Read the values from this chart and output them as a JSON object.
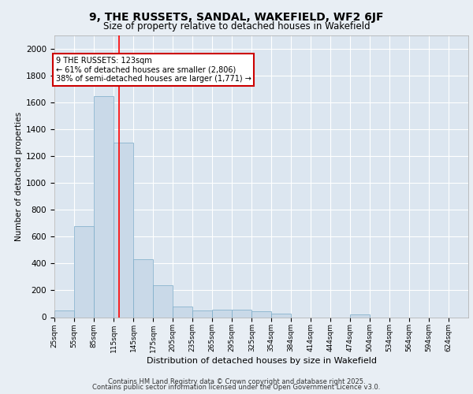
{
  "title": "9, THE RUSSETS, SANDAL, WAKEFIELD, WF2 6JF",
  "subtitle": "Size of property relative to detached houses in Wakefield",
  "xlabel": "Distribution of detached houses by size in Wakefield",
  "ylabel": "Number of detached properties",
  "bar_color": "#c9d9e8",
  "bar_edge_color": "#7aaac8",
  "background_color": "#e8eef4",
  "plot_bg_color": "#dce6f0",
  "grid_color": "#ffffff",
  "annotation_text": "9 THE RUSSETS: 123sqm\n← 61% of detached houses are smaller (2,806)\n38% of semi-detached houses are larger (1,771) →",
  "redline_x": 123,
  "categories": [
    "25sqm",
    "55sqm",
    "85sqm",
    "115sqm",
    "145sqm",
    "175sqm",
    "205sqm",
    "235sqm",
    "265sqm",
    "295sqm",
    "325sqm",
    "354sqm",
    "384sqm",
    "414sqm",
    "444sqm",
    "474sqm",
    "504sqm",
    "534sqm",
    "564sqm",
    "594sqm",
    "624sqm"
  ],
  "bin_edges": [
    25,
    55,
    85,
    115,
    145,
    175,
    205,
    235,
    265,
    295,
    325,
    354,
    384,
    414,
    444,
    474,
    504,
    534,
    564,
    594,
    624,
    654
  ],
  "values": [
    50,
    680,
    1650,
    1300,
    430,
    240,
    80,
    50,
    55,
    55,
    45,
    25,
    0,
    0,
    0,
    20,
    0,
    0,
    0,
    0,
    0
  ],
  "ylim": [
    0,
    2100
  ],
  "yticks": [
    0,
    200,
    400,
    600,
    800,
    1000,
    1200,
    1400,
    1600,
    1800,
    2000
  ],
  "footer_line1": "Contains HM Land Registry data © Crown copyright and database right 2025.",
  "footer_line2": "Contains public sector information licensed under the Open Government Licence v3.0."
}
